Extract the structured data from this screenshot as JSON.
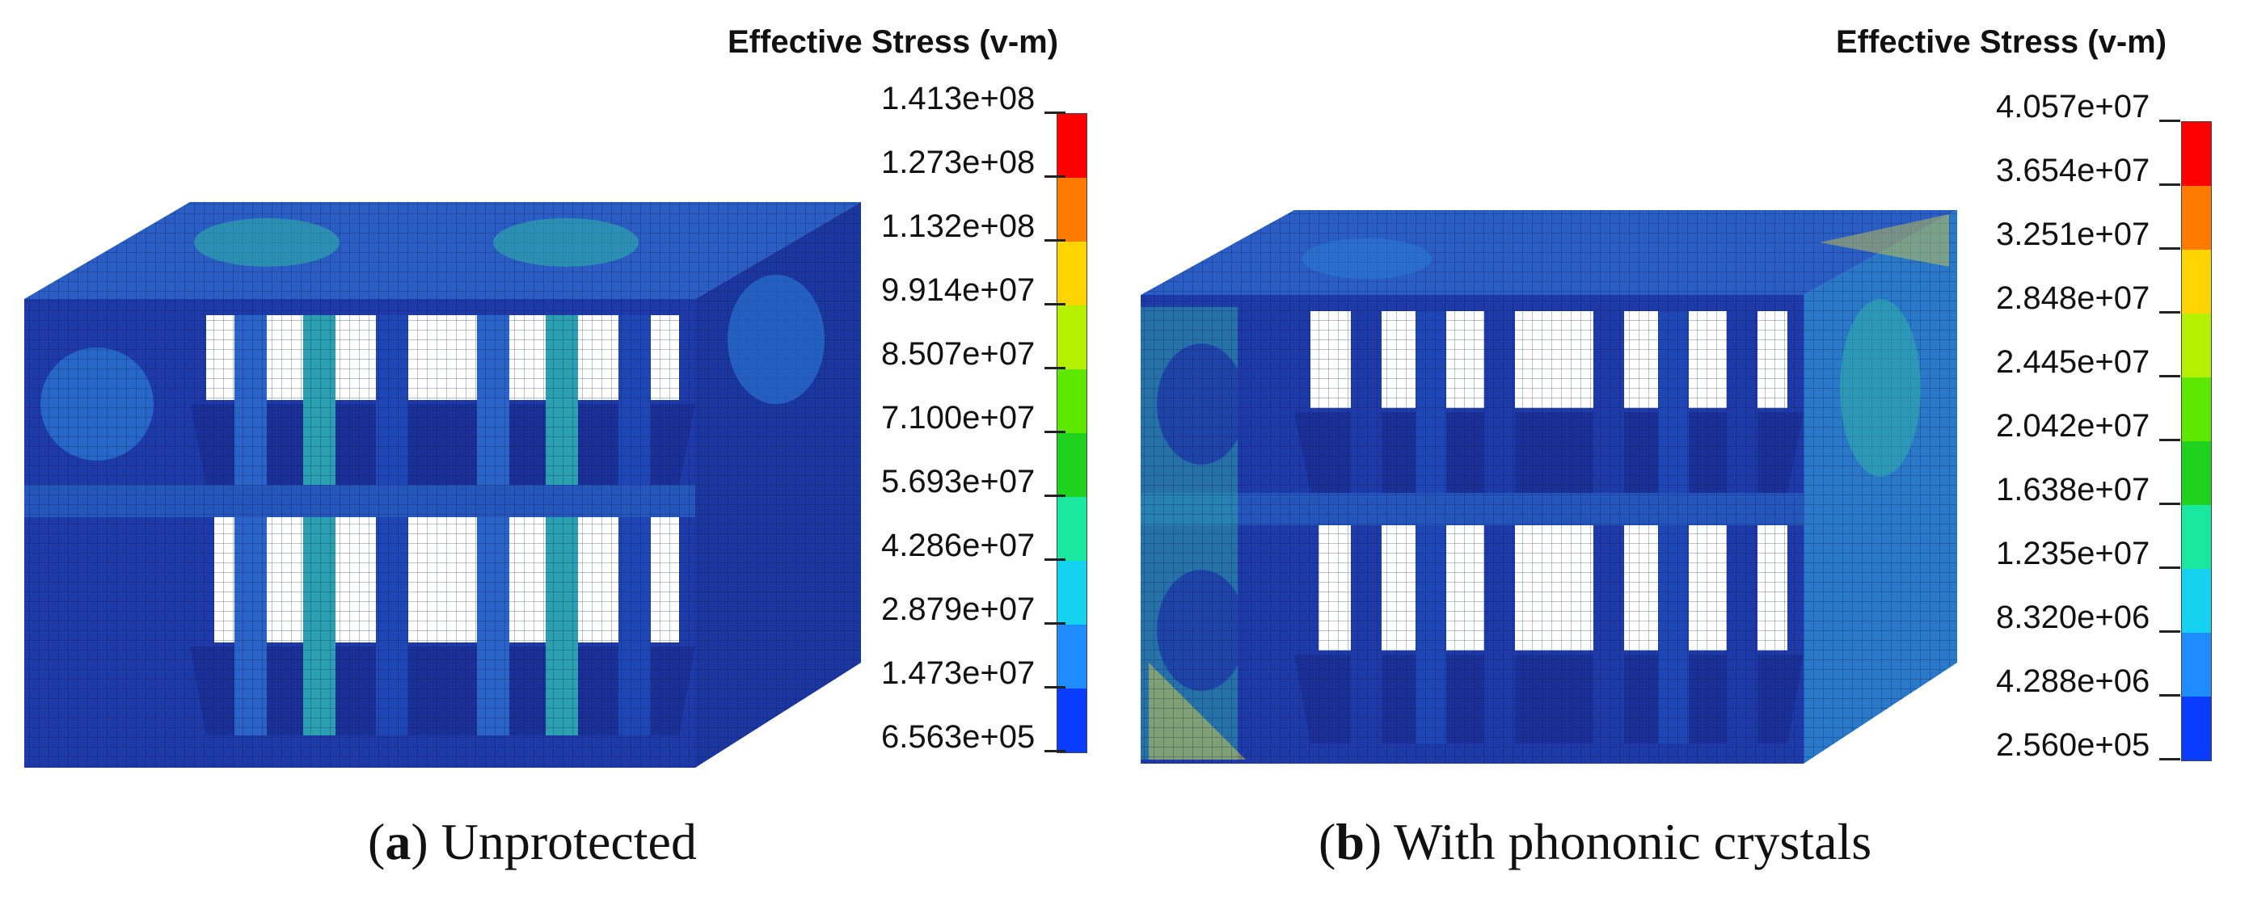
{
  "panels": [
    {
      "id": "a",
      "legend_title": "Effective Stress (v-m)",
      "ticks": [
        "1.413e+08",
        "1.273e+08",
        "1.132e+08",
        "9.914e+07",
        "8.507e+07",
        "7.100e+07",
        "5.693e+07",
        "4.286e+07",
        "2.879e+07",
        "1.473e+07",
        "6.563e+05"
      ],
      "caption_letter": "a",
      "caption_text": "Unprotected"
    },
    {
      "id": "b",
      "legend_title": "Effective Stress (v-m)",
      "ticks": [
        "4.057e+07",
        "3.654e+07",
        "3.251e+07",
        "2.848e+07",
        "2.445e+07",
        "2.042e+07",
        "1.638e+07",
        "1.235e+07",
        "8.320e+06",
        "4.288e+06",
        "2.560e+05"
      ],
      "caption_letter": "b",
      "caption_text": "With phononic crystals"
    }
  ],
  "colorbar_colors": [
    "#ff0000",
    "#ff7a00",
    "#ffd400",
    "#b4f000",
    "#5ee800",
    "#1ed21e",
    "#19e8a0",
    "#14d2f0",
    "#1e8cff",
    "#0a3cff"
  ],
  "model_colors": {
    "base": "#1e3aa8",
    "mesh": "#0c1a55",
    "mid": "#2a7bd6",
    "high": "#2fb6a8",
    "hot": "#d8d040"
  }
}
